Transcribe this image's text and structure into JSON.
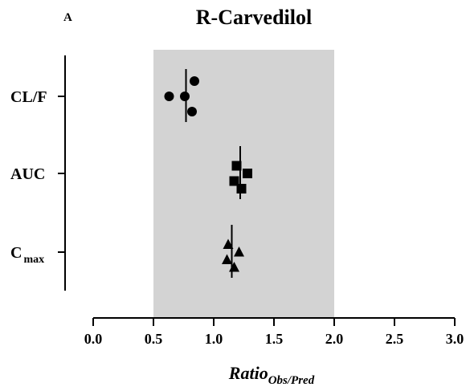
{
  "chart_data": {
    "type": "scatter",
    "panel_label": "A",
    "title": "R-Carvedilol",
    "xlabel": {
      "main": "Ratio",
      "subscript": "Obs/Pred"
    },
    "xlim": [
      0.0,
      3.0
    ],
    "x_ticks": [
      "0.0",
      "0.5",
      "1.0",
      "1.5",
      "2.0",
      "2.5",
      "3.0"
    ],
    "shaded_band": [
      0.5,
      2.0
    ],
    "shaded_color": "#d3d3d3",
    "grid": false,
    "categories": [
      {
        "name": "CL/F",
        "subscript": "",
        "marker": "circle",
        "mean": 0.77,
        "points": [
          {
            "x": 0.84,
            "offset": 1
          },
          {
            "x": 0.63,
            "offset": 0
          },
          {
            "x": 0.76,
            "offset": 0
          },
          {
            "x": 0.82,
            "offset": -1
          }
        ]
      },
      {
        "name": "AUC",
        "subscript": "",
        "marker": "square",
        "mean": 1.22,
        "points": [
          {
            "x": 1.19,
            "offset": 0.5
          },
          {
            "x": 1.28,
            "offset": 0
          },
          {
            "x": 1.17,
            "offset": -0.5
          },
          {
            "x": 1.23,
            "offset": -1
          }
        ]
      },
      {
        "name": "C",
        "subscript": "max",
        "marker": "triangle",
        "mean": 1.15,
        "points": [
          {
            "x": 1.12,
            "offset": 0.5
          },
          {
            "x": 1.21,
            "offset": 0
          },
          {
            "x": 1.11,
            "offset": -0.5
          },
          {
            "x": 1.17,
            "offset": -1
          }
        ]
      }
    ]
  }
}
